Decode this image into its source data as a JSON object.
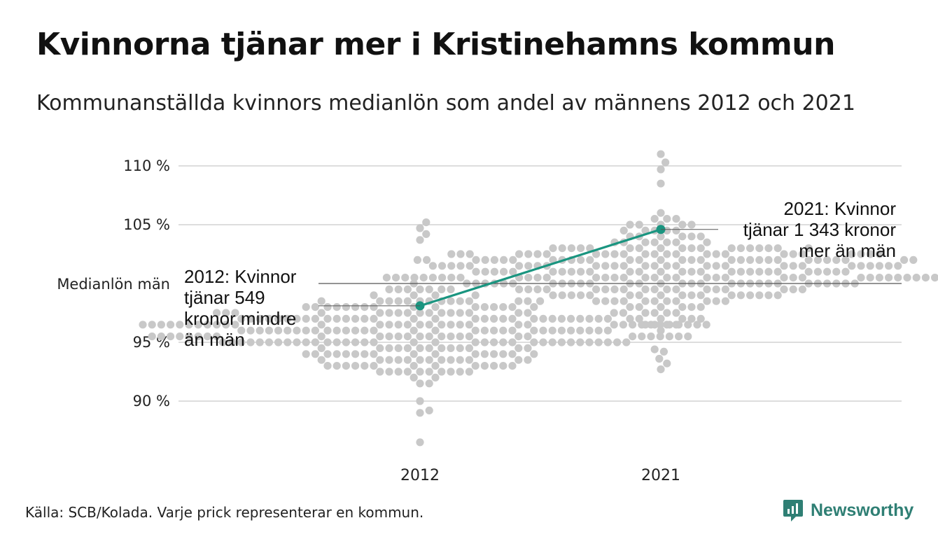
{
  "title": "Kvinnorna tjänar mer i Kristinehamns kommun",
  "subtitle": "Kommunanställda kvinnors medianlön som andel av männens 2012 och 2021",
  "source": "Källa: SCB/Kolada. Varje prick representerar en kommun.",
  "brand": "Newsworthy",
  "colors": {
    "dots": "#c8c8c8",
    "highlight": "#1a9580",
    "grid": "#dddddd",
    "reference": "#555555",
    "brand": "#2f7f74"
  },
  "chart_data": {
    "type": "scatter",
    "xlabel": "",
    "ylabel": "",
    "categories": [
      "2012",
      "2021"
    ],
    "ylim": [
      86,
      111
    ],
    "yticks": [
      {
        "value": 90,
        "label": "90 %"
      },
      {
        "value": 95,
        "label": "95 %"
      },
      {
        "value": 105,
        "label": "105 %"
      },
      {
        "value": 110,
        "label": "110 %"
      }
    ],
    "reference_line": {
      "value": 100,
      "label": "Medianlön män"
    },
    "series": [
      {
        "category": "2012",
        "distribution": {
          "count": 290,
          "center": 95.7,
          "spread": 2.3,
          "outliers": [
            86.5,
            89.0,
            89.2,
            104.7,
            105.2,
            104.2,
            103.7
          ]
        }
      },
      {
        "category": "2021",
        "distribution": {
          "count": 290,
          "center": 101.0,
          "spread": 2.6,
          "outliers": [
            92.7,
            93.2,
            93.6,
            94.2,
            94.4,
            109.7,
            110.3,
            111.0,
            108.5
          ]
        }
      }
    ],
    "highlight": {
      "name": "Kristinehamn",
      "points": [
        {
          "x": "2012",
          "y": 98.1
        },
        {
          "x": "2021",
          "y": 104.6
        }
      ]
    },
    "annotations": [
      {
        "category": "2012",
        "side": "left",
        "lines": [
          "2012: Kvinnor",
          "tjänar 549",
          "kronor mindre",
          "än män"
        ]
      },
      {
        "category": "2021",
        "side": "right",
        "lines": [
          "2021: Kvinnor",
          "tjänar 1 343 kronor",
          "mer än män"
        ]
      }
    ]
  }
}
